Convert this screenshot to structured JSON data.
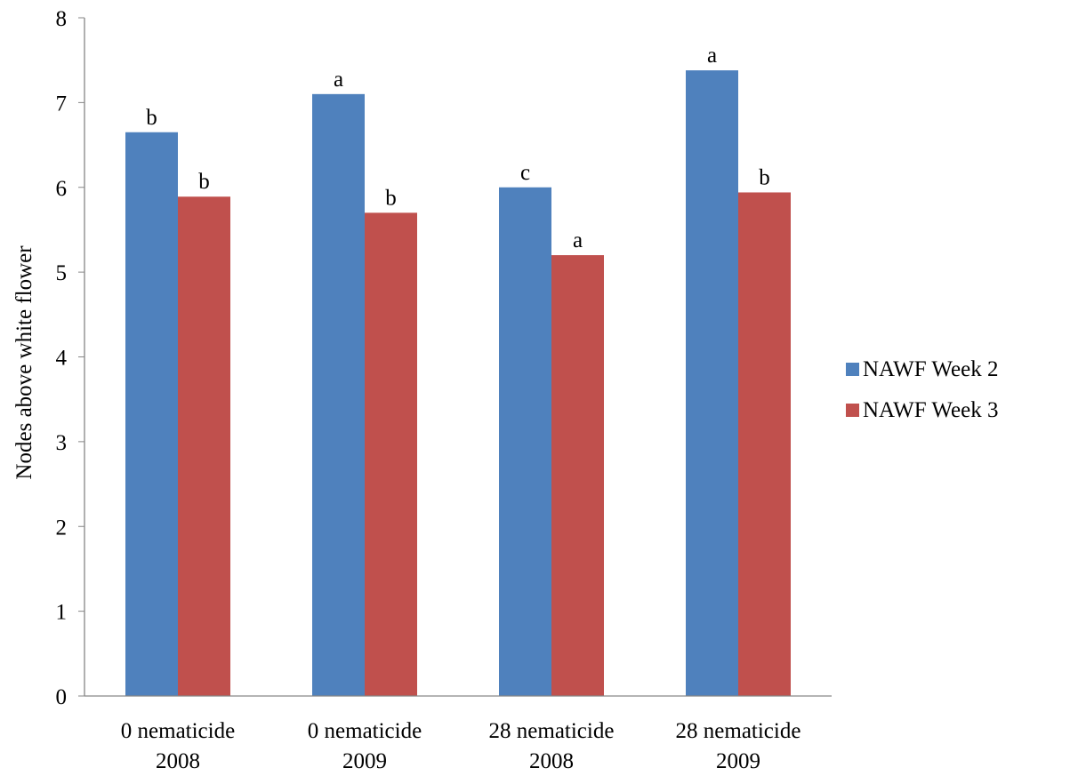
{
  "chart_data": {
    "type": "bar",
    "title": "",
    "xlabel": "",
    "ylabel": "Nodes above white flower",
    "ylim": [
      0,
      8
    ],
    "yticks": [
      0,
      1,
      2,
      3,
      4,
      5,
      6,
      7,
      8
    ],
    "grid": false,
    "legend_position": "right",
    "categories": [
      [
        "0 nematicide",
        "2008"
      ],
      [
        "0 nematicide",
        "2009"
      ],
      [
        "28 nematicide",
        "2008"
      ],
      [
        "28 nematicide",
        "2009"
      ]
    ],
    "series": [
      {
        "name": "NAWF Week 2",
        "color": "#4F81BD",
        "values": [
          6.65,
          7.1,
          6.0,
          7.38
        ],
        "labels": [
          "b",
          "a",
          "c",
          "a"
        ]
      },
      {
        "name": "NAWF Week 3",
        "color": "#C0504D",
        "values": [
          5.89,
          5.7,
          5.2,
          5.94
        ],
        "labels": [
          "b",
          "b",
          "a",
          "b"
        ]
      }
    ]
  }
}
